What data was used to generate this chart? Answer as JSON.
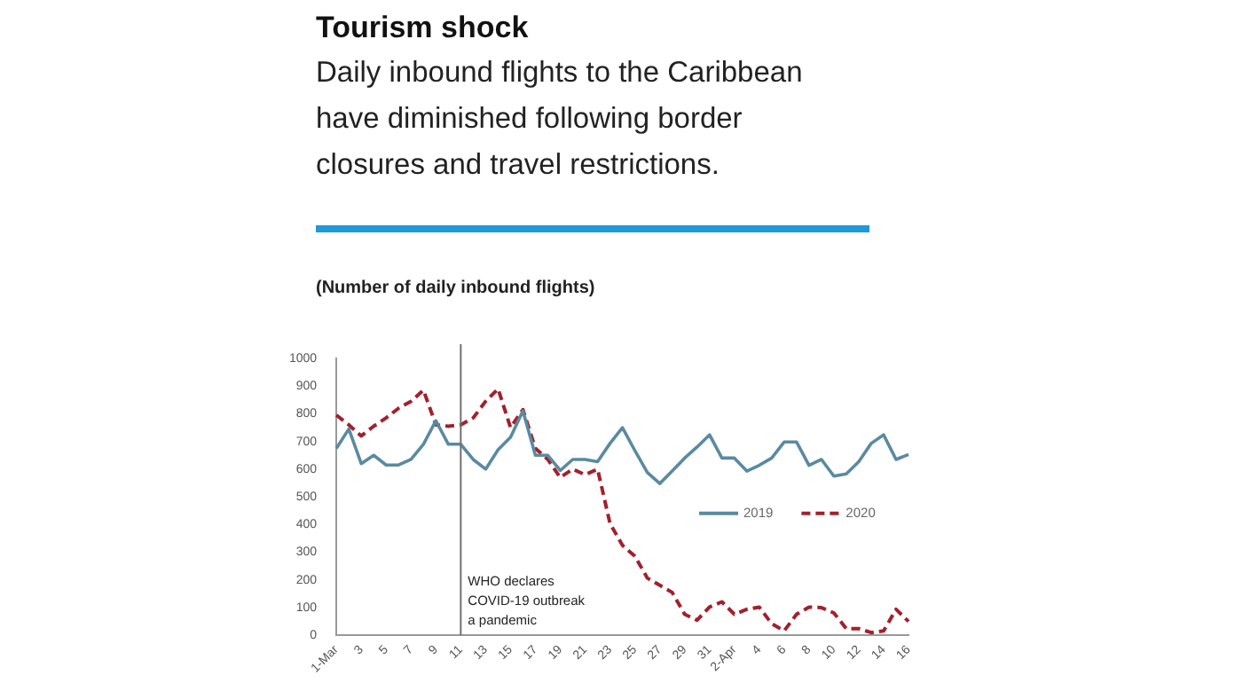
{
  "chart_data": {
    "type": "line",
    "title": "Tourism shock",
    "subtitle": "Daily inbound flights to the Caribbean have diminished following border closures and travel restrictions.",
    "ylabel": "(Number of daily inbound flights)",
    "categories": [
      "1-Mar",
      null,
      "3",
      null,
      "5",
      null,
      "7",
      null,
      "9",
      null,
      "11",
      null,
      "13",
      null,
      "15",
      null,
      "17",
      null,
      "19",
      null,
      "21",
      null,
      "23",
      null,
      "25",
      null,
      "27",
      null,
      "29",
      null,
      "31",
      null,
      "2-Apr",
      null,
      "4",
      null,
      "6",
      null,
      "8",
      null,
      "10",
      null,
      "12",
      null,
      "14",
      null,
      "16"
    ],
    "series": [
      {
        "name": "2019",
        "color": "#5a8aa0",
        "line_style": "solid",
        "values": [
          675,
          745,
          620,
          650,
          615,
          615,
          635,
          690,
          775,
          690,
          690,
          635,
          600,
          670,
          715,
          810,
          650,
          650,
          595,
          635,
          635,
          627,
          693,
          750,
          667,
          588,
          548,
          593,
          640,
          680,
          724,
          640,
          640,
          593,
          614,
          640,
          698,
          698,
          614,
          635,
          575,
          583,
          627,
          693,
          724,
          635,
          653
        ]
      },
      {
        "name": "2020",
        "color": "#a3202c",
        "line_style": "dashed",
        "values": [
          795,
          760,
          720,
          755,
          785,
          820,
          845,
          885,
          760,
          755,
          760,
          785,
          845,
          890,
          750,
          815,
          675,
          635,
          570,
          600,
          580,
          600,
          404,
          325,
          286,
          207,
          181,
          155,
          76,
          55,
          102,
          121,
          76,
          94,
          102,
          42,
          16,
          76,
          102,
          100,
          81,
          24,
          24,
          10,
          16,
          94,
          50
        ]
      }
    ],
    "ylim": [
      0,
      1000
    ],
    "yticks": [
      0,
      100,
      200,
      300,
      400,
      500,
      600,
      700,
      800,
      900,
      1000
    ],
    "grid": false,
    "legend": "right",
    "marker": "none",
    "ref_lines": [
      {
        "axis": "x",
        "value": "11",
        "label": "WHO declares COVID-19 outbreak a pandemic",
        "color": "#707070"
      }
    ]
  }
}
